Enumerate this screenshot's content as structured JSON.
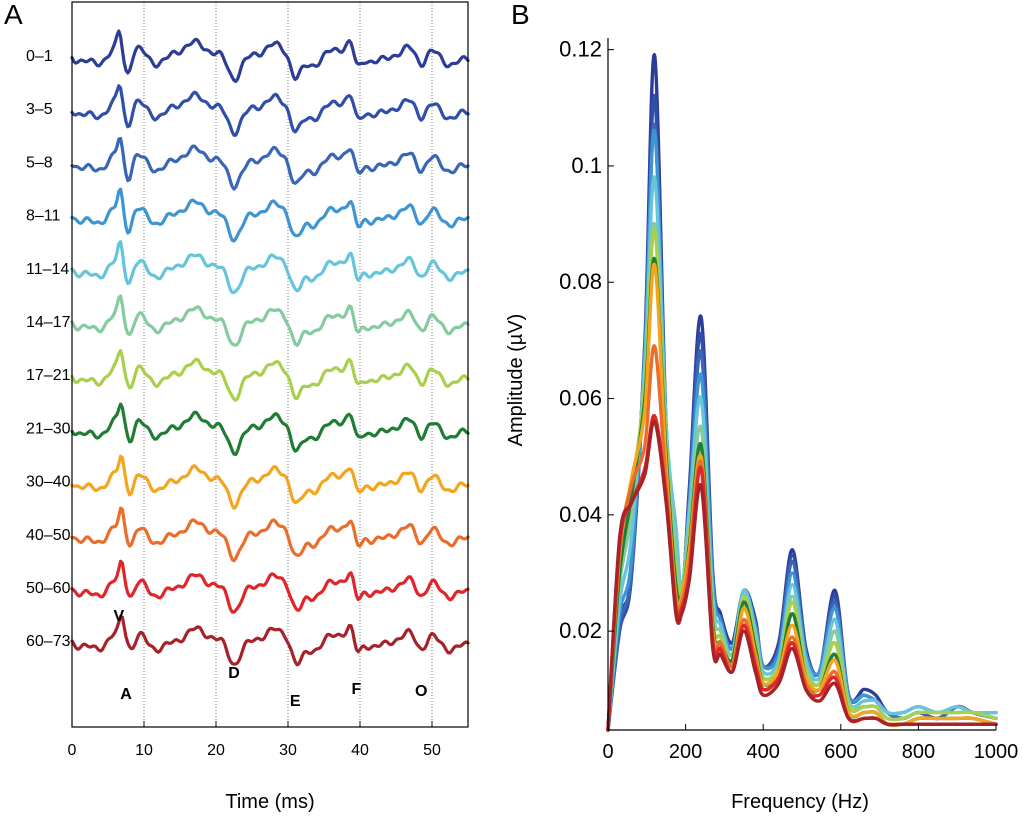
{
  "chart_data": [
    {
      "panel": "A",
      "type": "line",
      "xlabel": "Time (ms)",
      "ylabel": "",
      "xlim": [
        0,
        55
      ],
      "xticks": [
        0,
        10,
        20,
        30,
        40,
        50
      ],
      "gridlines_x": [
        10,
        20,
        30,
        40,
        50
      ],
      "grid": "vertical dotted at 10 ms intervals",
      "legend": "row labels at left",
      "row_labels": [
        "0–1",
        "3–5",
        "5–8",
        "8–11",
        "11–14",
        "14–17",
        "17–21",
        "21–30",
        "30–40",
        "40–50",
        "50–60",
        "60–73"
      ],
      "colors": [
        "#2b3d97",
        "#2f4fa8",
        "#3a66b8",
        "#3f95d1",
        "#66c4dc",
        "#86cba0",
        "#a8cf4e",
        "#1f7d34",
        "#f4a51f",
        "#ea6d2b",
        "#e0262a",
        "#a6232a"
      ],
      "peak_labels": [
        {
          "label": "V",
          "time_ms": 6.5
        },
        {
          "label": "A",
          "time_ms": 7.5
        },
        {
          "label": "D",
          "time_ms": 22.5
        },
        {
          "label": "E",
          "time_ms": 31
        },
        {
          "label": "F",
          "time_ms": 39.5
        },
        {
          "label": "O",
          "time_ms": 48.5
        }
      ]
    },
    {
      "panel": "B",
      "type": "line",
      "xlabel": "Frequency (Hz)",
      "ylabel": "Amplitude (µV)",
      "xlim": [
        0,
        1000
      ],
      "ylim": [
        0.003,
        0.122
      ],
      "xticks": [
        0,
        200,
        400,
        600,
        800,
        1000
      ],
      "yticks": [
        0.02,
        0.04,
        0.06,
        0.08,
        0.1,
        0.12
      ],
      "ytick_labels": [
        "0.02",
        "0.04",
        "0.06",
        "0.08",
        "0.1",
        "0.12"
      ],
      "grid": "off",
      "series": [
        {
          "color": "#2b3d97",
          "x": [
            0,
            30,
            60,
            95,
            120,
            150,
            175,
            190,
            210,
            240,
            270,
            290,
            320,
            350,
            380,
            400,
            440,
            475,
            510,
            545,
            585,
            620,
            660,
            690,
            720,
            760,
            800,
            850,
            900,
            940,
            1000
          ],
          "y": [
            0.003,
            0.022,
            0.03,
            0.07,
            0.119,
            0.055,
            0.036,
            0.025,
            0.045,
            0.074,
            0.03,
            0.023,
            0.018,
            0.027,
            0.022,
            0.014,
            0.018,
            0.034,
            0.017,
            0.013,
            0.027,
            0.009,
            0.01,
            0.009,
            0.006,
            0.005,
            0.006,
            0.005,
            0.007,
            0.006,
            0.005
          ]
        },
        {
          "color": "#2f4fa8",
          "x": [
            0,
            30,
            60,
            95,
            120,
            150,
            175,
            190,
            210,
            240,
            270,
            290,
            320,
            350,
            380,
            400,
            440,
            475,
            510,
            545,
            585,
            620,
            660,
            690,
            720,
            760,
            800,
            850,
            900,
            940,
            1000
          ],
          "y": [
            0.003,
            0.02,
            0.029,
            0.068,
            0.112,
            0.054,
            0.035,
            0.024,
            0.044,
            0.071,
            0.029,
            0.022,
            0.017,
            0.026,
            0.021,
            0.014,
            0.017,
            0.033,
            0.017,
            0.013,
            0.026,
            0.009,
            0.009,
            0.008,
            0.006,
            0.005,
            0.006,
            0.005,
            0.007,
            0.006,
            0.005
          ]
        },
        {
          "color": "#3a66b8",
          "x": [
            0,
            30,
            60,
            95,
            120,
            150,
            175,
            190,
            210,
            240,
            270,
            290,
            320,
            350,
            380,
            400,
            440,
            475,
            510,
            545,
            585,
            620,
            660,
            690,
            720,
            760,
            800,
            850,
            900,
            940,
            1000
          ],
          "y": [
            0.003,
            0.021,
            0.03,
            0.067,
            0.107,
            0.053,
            0.035,
            0.024,
            0.043,
            0.068,
            0.029,
            0.022,
            0.017,
            0.026,
            0.021,
            0.014,
            0.017,
            0.032,
            0.016,
            0.013,
            0.025,
            0.009,
            0.009,
            0.008,
            0.006,
            0.005,
            0.006,
            0.005,
            0.007,
            0.006,
            0.005
          ]
        },
        {
          "color": "#3f95d1",
          "x": [
            0,
            30,
            60,
            95,
            120,
            150,
            175,
            190,
            210,
            240,
            270,
            290,
            320,
            350,
            380,
            400,
            440,
            475,
            510,
            545,
            585,
            620,
            660,
            690,
            720,
            760,
            800,
            850,
            900,
            940,
            1000
          ],
          "y": [
            0.003,
            0.023,
            0.032,
            0.068,
            0.106,
            0.055,
            0.037,
            0.026,
            0.042,
            0.064,
            0.028,
            0.022,
            0.017,
            0.027,
            0.021,
            0.014,
            0.016,
            0.03,
            0.016,
            0.013,
            0.024,
            0.009,
            0.009,
            0.008,
            0.006,
            0.006,
            0.007,
            0.006,
            0.007,
            0.006,
            0.006
          ]
        },
        {
          "color": "#66c4dc",
          "x": [
            0,
            30,
            60,
            95,
            120,
            150,
            175,
            190,
            210,
            240,
            270,
            290,
            320,
            350,
            380,
            400,
            440,
            475,
            510,
            545,
            585,
            620,
            660,
            690,
            720,
            760,
            800,
            850,
            900,
            940,
            1000
          ],
          "y": [
            0.003,
            0.025,
            0.036,
            0.066,
            0.098,
            0.055,
            0.038,
            0.027,
            0.041,
            0.06,
            0.026,
            0.021,
            0.016,
            0.027,
            0.02,
            0.013,
            0.015,
            0.028,
            0.015,
            0.012,
            0.022,
            0.008,
            0.008,
            0.008,
            0.006,
            0.006,
            0.007,
            0.006,
            0.007,
            0.006,
            0.006
          ]
        },
        {
          "color": "#86cba0",
          "x": [
            0,
            30,
            60,
            95,
            120,
            150,
            175,
            190,
            210,
            240,
            270,
            290,
            320,
            350,
            380,
            400,
            440,
            475,
            510,
            545,
            585,
            620,
            660,
            690,
            720,
            760,
            800,
            850,
            900,
            940,
            1000
          ],
          "y": [
            0.003,
            0.028,
            0.04,
            0.064,
            0.09,
            0.053,
            0.033,
            0.027,
            0.038,
            0.055,
            0.024,
            0.02,
            0.016,
            0.026,
            0.019,
            0.012,
            0.014,
            0.026,
            0.014,
            0.011,
            0.02,
            0.008,
            0.007,
            0.007,
            0.005,
            0.005,
            0.006,
            0.006,
            0.006,
            0.006,
            0.005
          ]
        },
        {
          "color": "#a8cf4e",
          "x": [
            0,
            30,
            60,
            95,
            120,
            150,
            175,
            190,
            210,
            240,
            270,
            290,
            320,
            350,
            380,
            400,
            440,
            475,
            510,
            545,
            585,
            620,
            660,
            690,
            720,
            760,
            800,
            850,
            900,
            940,
            1000
          ],
          "y": [
            0.003,
            0.03,
            0.044,
            0.062,
            0.089,
            0.052,
            0.03,
            0.027,
            0.036,
            0.052,
            0.022,
            0.019,
            0.015,
            0.026,
            0.018,
            0.012,
            0.014,
            0.025,
            0.013,
            0.011,
            0.018,
            0.007,
            0.007,
            0.007,
            0.005,
            0.005,
            0.006,
            0.006,
            0.006,
            0.006,
            0.005
          ]
        },
        {
          "color": "#1f7d34",
          "x": [
            0,
            30,
            60,
            95,
            120,
            150,
            175,
            190,
            210,
            240,
            270,
            290,
            320,
            350,
            380,
            400,
            440,
            475,
            510,
            545,
            585,
            620,
            660,
            690,
            720,
            760,
            800,
            850,
            900,
            940,
            1000
          ],
          "y": [
            0.003,
            0.03,
            0.043,
            0.06,
            0.084,
            0.05,
            0.028,
            0.026,
            0.035,
            0.052,
            0.021,
            0.018,
            0.015,
            0.025,
            0.017,
            0.011,
            0.013,
            0.023,
            0.012,
            0.01,
            0.016,
            0.006,
            0.006,
            0.006,
            0.004,
            0.004,
            0.005,
            0.005,
            0.005,
            0.005,
            0.004
          ]
        },
        {
          "color": "#f4a51f",
          "x": [
            0,
            30,
            60,
            95,
            120,
            150,
            175,
            190,
            210,
            240,
            270,
            290,
            320,
            350,
            380,
            400,
            440,
            475,
            510,
            545,
            585,
            620,
            660,
            690,
            720,
            760,
            800,
            850,
            900,
            940,
            1000
          ],
          "y": [
            0.003,
            0.033,
            0.046,
            0.058,
            0.083,
            0.048,
            0.026,
            0.026,
            0.034,
            0.05,
            0.02,
            0.018,
            0.014,
            0.024,
            0.016,
            0.011,
            0.013,
            0.021,
            0.012,
            0.01,
            0.015,
            0.006,
            0.006,
            0.006,
            0.004,
            0.004,
            0.005,
            0.005,
            0.005,
            0.005,
            0.004
          ]
        },
        {
          "color": "#ea6d2b",
          "x": [
            0,
            30,
            60,
            95,
            120,
            150,
            175,
            190,
            210,
            240,
            270,
            290,
            320,
            350,
            380,
            400,
            440,
            475,
            510,
            545,
            585,
            620,
            660,
            690,
            720,
            760,
            800,
            850,
            900,
            940,
            1000
          ],
          "y": [
            0.003,
            0.034,
            0.045,
            0.052,
            0.069,
            0.045,
            0.025,
            0.025,
            0.032,
            0.049,
            0.019,
            0.018,
            0.014,
            0.022,
            0.015,
            0.01,
            0.012,
            0.019,
            0.011,
            0.009,
            0.013,
            0.005,
            0.005,
            0.005,
            0.004,
            0.004,
            0.004,
            0.004,
            0.004,
            0.004,
            0.004
          ]
        },
        {
          "color": "#e0262a",
          "x": [
            0,
            30,
            60,
            95,
            120,
            150,
            175,
            190,
            210,
            240,
            270,
            290,
            320,
            350,
            380,
            400,
            440,
            475,
            510,
            545,
            585,
            620,
            660,
            690,
            720,
            760,
            800,
            850,
            900,
            940,
            1000
          ],
          "y": [
            0.003,
            0.035,
            0.042,
            0.048,
            0.057,
            0.043,
            0.024,
            0.024,
            0.03,
            0.048,
            0.018,
            0.017,
            0.013,
            0.021,
            0.014,
            0.01,
            0.012,
            0.018,
            0.01,
            0.009,
            0.012,
            0.005,
            0.005,
            0.005,
            0.004,
            0.004,
            0.004,
            0.004,
            0.004,
            0.004,
            0.004
          ]
        },
        {
          "color": "#a6232a",
          "x": [
            0,
            30,
            60,
            95,
            120,
            150,
            175,
            190,
            210,
            240,
            270,
            290,
            320,
            350,
            380,
            400,
            440,
            475,
            510,
            545,
            585,
            620,
            660,
            690,
            720,
            760,
            800,
            850,
            900,
            940,
            1000
          ],
          "y": [
            0.003,
            0.036,
            0.042,
            0.047,
            0.056,
            0.042,
            0.023,
            0.023,
            0.029,
            0.045,
            0.017,
            0.016,
            0.013,
            0.02,
            0.013,
            0.009,
            0.011,
            0.017,
            0.01,
            0.008,
            0.011,
            0.005,
            0.005,
            0.005,
            0.004,
            0.004,
            0.004,
            0.004,
            0.004,
            0.004,
            0.004
          ]
        }
      ]
    }
  ],
  "panels": {
    "a": {
      "letter": "A"
    },
    "b": {
      "letter": "B"
    }
  }
}
